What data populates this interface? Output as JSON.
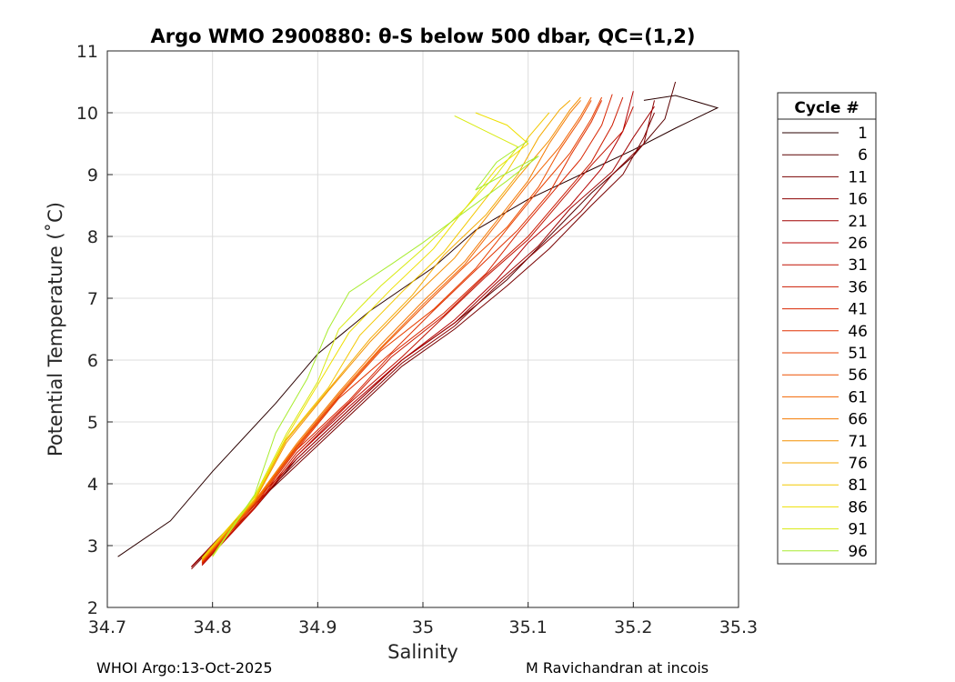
{
  "chart_data": {
    "type": "line",
    "title": "Argo WMO 2900880: θ-S below 500 dbar,  QC=(1,2)",
    "xlabel": "Salinity",
    "ylabel": "Potential Temperature (˚C)",
    "xlim": [
      34.7,
      35.3
    ],
    "ylim": [
      2,
      11
    ],
    "xticks": [
      "34.7",
      "34.8",
      "34.9",
      "35",
      "35.1",
      "35.2",
      "35.3"
    ],
    "yticks": [
      "2",
      "3",
      "4",
      "5",
      "6",
      "7",
      "8",
      "9",
      "10",
      "11"
    ],
    "grid": true,
    "legend_title": "Cycle #",
    "legend_position": "right",
    "series": [
      {
        "name": "1",
        "color": "#2a0000",
        "points": [
          [
            34.71,
            2.82
          ],
          [
            34.76,
            3.4
          ],
          [
            34.8,
            4.2
          ],
          [
            34.86,
            5.3
          ],
          [
            34.9,
            6.1
          ],
          [
            34.95,
            6.8
          ],
          [
            35.01,
            7.5
          ],
          [
            35.05,
            8.1
          ],
          [
            35.1,
            8.6
          ],
          [
            35.15,
            9.0
          ],
          [
            35.2,
            9.4
          ],
          [
            35.24,
            9.75
          ],
          [
            35.28,
            10.08
          ],
          [
            35.24,
            10.28
          ],
          [
            35.21,
            10.2
          ]
        ]
      },
      {
        "name": "6",
        "color": "#5a0000",
        "points": [
          [
            34.79,
            2.8
          ],
          [
            34.84,
            3.6
          ],
          [
            34.88,
            4.4
          ],
          [
            34.93,
            5.2
          ],
          [
            34.98,
            6.0
          ],
          [
            35.03,
            6.6
          ],
          [
            35.08,
            7.3
          ],
          [
            35.12,
            8.0
          ],
          [
            35.16,
            8.7
          ],
          [
            35.2,
            9.3
          ],
          [
            35.23,
            9.9
          ],
          [
            35.24,
            10.5
          ]
        ]
      },
      {
        "name": "11",
        "color": "#780000",
        "points": [
          [
            34.78,
            2.65
          ],
          [
            34.83,
            3.5
          ],
          [
            34.88,
            4.3
          ],
          [
            34.93,
            5.1
          ],
          [
            34.98,
            5.9
          ],
          [
            35.03,
            6.5
          ],
          [
            35.08,
            7.2
          ],
          [
            35.12,
            7.8
          ],
          [
            35.16,
            8.5
          ],
          [
            35.19,
            9.0
          ],
          [
            35.21,
            9.6
          ],
          [
            35.22,
            10.0
          ]
        ]
      },
      {
        "name": "16",
        "color": "#8c0000",
        "points": [
          [
            34.78,
            2.62
          ],
          [
            34.83,
            3.5
          ],
          [
            34.88,
            4.35
          ],
          [
            34.93,
            5.15
          ],
          [
            34.98,
            5.95
          ],
          [
            35.03,
            6.55
          ],
          [
            35.07,
            7.2
          ],
          [
            35.11,
            7.8
          ],
          [
            35.15,
            8.4
          ],
          [
            35.18,
            9.0
          ],
          [
            35.21,
            9.5
          ],
          [
            35.22,
            10.2
          ]
        ]
      },
      {
        "name": "21",
        "color": "#a00000",
        "points": [
          [
            34.78,
            2.66
          ],
          [
            34.83,
            3.55
          ],
          [
            34.88,
            4.4
          ],
          [
            34.93,
            5.2
          ],
          [
            34.98,
            6.0
          ],
          [
            35.03,
            6.6
          ],
          [
            35.07,
            7.25
          ],
          [
            35.11,
            7.85
          ],
          [
            35.14,
            8.45
          ],
          [
            35.18,
            9.05
          ],
          [
            35.2,
            9.6
          ],
          [
            35.22,
            10.1
          ]
        ]
      },
      {
        "name": "26",
        "color": "#b40000",
        "points": [
          [
            34.79,
            2.68
          ],
          [
            34.84,
            3.6
          ],
          [
            34.88,
            4.45
          ],
          [
            34.93,
            5.25
          ],
          [
            34.98,
            6.0
          ],
          [
            35.03,
            6.65
          ],
          [
            35.07,
            7.3
          ],
          [
            35.1,
            7.9
          ],
          [
            35.14,
            8.5
          ],
          [
            35.17,
            9.1
          ],
          [
            35.19,
            9.7
          ],
          [
            35.2,
            10.35
          ]
        ]
      },
      {
        "name": "31",
        "color": "#c01000",
        "points": [
          [
            34.79,
            2.7
          ],
          [
            34.84,
            3.6
          ],
          [
            34.88,
            4.45
          ],
          [
            34.93,
            5.3
          ],
          [
            34.98,
            6.05
          ],
          [
            35.02,
            6.7
          ],
          [
            35.06,
            7.35
          ],
          [
            35.1,
            7.95
          ],
          [
            35.13,
            8.55
          ],
          [
            35.16,
            9.15
          ],
          [
            35.19,
            9.7
          ],
          [
            35.2,
            10.1
          ]
        ]
      },
      {
        "name": "36",
        "color": "#cc1a00",
        "points": [
          [
            34.79,
            2.7
          ],
          [
            34.84,
            3.62
          ],
          [
            34.88,
            4.5
          ],
          [
            34.93,
            5.32
          ],
          [
            34.97,
            6.05
          ],
          [
            35.02,
            6.72
          ],
          [
            35.06,
            7.38
          ],
          [
            35.1,
            8.0
          ],
          [
            35.13,
            8.6
          ],
          [
            35.16,
            9.2
          ],
          [
            35.18,
            9.8
          ],
          [
            35.19,
            10.25
          ]
        ]
      },
      {
        "name": "41",
        "color": "#d82400",
        "points": [
          [
            34.79,
            2.72
          ],
          [
            34.84,
            3.65
          ],
          [
            34.88,
            4.55
          ],
          [
            34.93,
            5.35
          ],
          [
            34.97,
            6.1
          ],
          [
            35.02,
            6.76
          ],
          [
            35.06,
            7.4
          ],
          [
            35.09,
            8.05
          ],
          [
            35.12,
            8.65
          ],
          [
            35.15,
            9.25
          ],
          [
            35.17,
            9.8
          ],
          [
            35.18,
            10.3
          ]
        ]
      },
      {
        "name": "46",
        "color": "#e03000",
        "points": [
          [
            34.79,
            2.72
          ],
          [
            34.84,
            3.65
          ],
          [
            34.88,
            4.55
          ],
          [
            34.92,
            5.38
          ],
          [
            34.97,
            6.12
          ],
          [
            35.01,
            6.8
          ],
          [
            35.05,
            7.45
          ],
          [
            35.09,
            8.1
          ],
          [
            35.12,
            8.7
          ],
          [
            35.14,
            9.3
          ],
          [
            35.16,
            9.85
          ],
          [
            35.17,
            10.2
          ]
        ]
      },
      {
        "name": "51",
        "color": "#e84000",
        "points": [
          [
            34.79,
            2.74
          ],
          [
            34.84,
            3.68
          ],
          [
            34.88,
            4.58
          ],
          [
            34.92,
            5.4
          ],
          [
            34.96,
            6.15
          ],
          [
            35.01,
            6.82
          ],
          [
            35.05,
            7.48
          ],
          [
            35.08,
            8.12
          ],
          [
            35.11,
            8.75
          ],
          [
            35.14,
            9.35
          ],
          [
            35.16,
            9.9
          ],
          [
            35.17,
            10.25
          ]
        ]
      },
      {
        "name": "56",
        "color": "#ee5000",
        "points": [
          [
            34.79,
            2.74
          ],
          [
            34.84,
            3.68
          ],
          [
            34.88,
            4.6
          ],
          [
            34.92,
            5.42
          ],
          [
            34.96,
            6.18
          ],
          [
            35.0,
            6.86
          ],
          [
            35.04,
            7.52
          ],
          [
            35.08,
            8.15
          ],
          [
            35.11,
            8.8
          ],
          [
            35.13,
            9.4
          ],
          [
            35.15,
            9.9
          ],
          [
            35.16,
            10.2
          ]
        ]
      },
      {
        "name": "61",
        "color": "#f26400",
        "points": [
          [
            34.79,
            2.75
          ],
          [
            34.84,
            3.7
          ],
          [
            34.88,
            4.62
          ],
          [
            34.92,
            5.45
          ],
          [
            34.96,
            6.2
          ],
          [
            35.0,
            6.9
          ],
          [
            35.04,
            7.55
          ],
          [
            35.07,
            8.2
          ],
          [
            35.1,
            8.85
          ],
          [
            35.13,
            9.45
          ],
          [
            35.15,
            9.95
          ],
          [
            35.16,
            10.25
          ]
        ]
      },
      {
        "name": "66",
        "color": "#f47a00",
        "points": [
          [
            34.79,
            2.76
          ],
          [
            34.84,
            3.72
          ],
          [
            34.88,
            4.65
          ],
          [
            34.92,
            5.48
          ],
          [
            34.96,
            6.25
          ],
          [
            35.0,
            6.95
          ],
          [
            35.04,
            7.6
          ],
          [
            35.07,
            8.25
          ],
          [
            35.1,
            8.9
          ],
          [
            35.12,
            9.5
          ],
          [
            35.14,
            10.0
          ],
          [
            35.15,
            10.2
          ]
        ]
      },
      {
        "name": "71",
        "color": "#f49000",
        "points": [
          [
            34.79,
            2.76
          ],
          [
            34.84,
            3.72
          ],
          [
            34.87,
            4.66
          ],
          [
            34.91,
            5.5
          ],
          [
            34.95,
            6.3
          ],
          [
            34.99,
            7.0
          ],
          [
            35.03,
            7.65
          ],
          [
            35.06,
            8.3
          ],
          [
            35.09,
            8.95
          ],
          [
            35.12,
            9.55
          ],
          [
            35.14,
            10.05
          ],
          [
            35.15,
            10.25
          ]
        ]
      },
      {
        "name": "76",
        "color": "#f4aa00",
        "points": [
          [
            34.79,
            2.78
          ],
          [
            34.84,
            3.74
          ],
          [
            34.87,
            4.7
          ],
          [
            34.91,
            5.52
          ],
          [
            34.95,
            6.35
          ],
          [
            34.99,
            7.05
          ],
          [
            35.02,
            7.7
          ],
          [
            35.06,
            8.35
          ],
          [
            35.09,
            9.0
          ],
          [
            35.11,
            9.6
          ],
          [
            35.13,
            10.05
          ],
          [
            35.14,
            10.2
          ]
        ]
      },
      {
        "name": "81",
        "color": "#f2c800",
        "points": [
          [
            34.79,
            2.78
          ],
          [
            34.84,
            3.75
          ],
          [
            34.87,
            4.72
          ],
          [
            34.91,
            5.55
          ],
          [
            34.94,
            6.4
          ],
          [
            34.98,
            7.1
          ],
          [
            35.02,
            7.75
          ],
          [
            35.05,
            8.4
          ],
          [
            35.08,
            9.05
          ],
          [
            35.1,
            9.6
          ],
          [
            35.12,
            10.0
          ]
        ]
      },
      {
        "name": "86",
        "color": "#eedf00",
        "points": [
          [
            34.79,
            2.8
          ],
          [
            34.84,
            3.78
          ],
          [
            34.87,
            4.75
          ],
          [
            34.9,
            5.6
          ],
          [
            34.93,
            6.45
          ],
          [
            34.97,
            7.15
          ],
          [
            35.01,
            7.8
          ],
          [
            35.04,
            8.45
          ],
          [
            35.07,
            9.1
          ],
          [
            35.1,
            9.5
          ],
          [
            35.08,
            9.8
          ],
          [
            35.05,
            10.0
          ]
        ]
      },
      {
        "name": "91",
        "color": "#d8ea10",
        "points": [
          [
            34.8,
            2.82
          ],
          [
            34.84,
            3.8
          ],
          [
            34.87,
            4.8
          ],
          [
            34.9,
            5.65
          ],
          [
            34.92,
            6.5
          ],
          [
            34.96,
            7.2
          ],
          [
            35.0,
            7.8
          ],
          [
            35.04,
            8.45
          ],
          [
            35.07,
            9.0
          ],
          [
            35.09,
            9.45
          ],
          [
            35.06,
            9.7
          ],
          [
            35.03,
            9.95
          ]
        ]
      },
      {
        "name": "96",
        "color": "#a8ec30",
        "points": [
          [
            34.8,
            2.84
          ],
          [
            34.84,
            3.82
          ],
          [
            34.86,
            4.82
          ],
          [
            34.89,
            5.7
          ],
          [
            34.91,
            6.5
          ],
          [
            34.93,
            7.1
          ],
          [
            34.97,
            7.55
          ],
          [
            35.0,
            7.9
          ],
          [
            35.04,
            8.4
          ],
          [
            35.08,
            8.9
          ],
          [
            35.11,
            9.3
          ],
          [
            35.05,
            8.75
          ],
          [
            35.07,
            9.2
          ],
          [
            35.1,
            9.55
          ]
        ]
      }
    ]
  },
  "footer": {
    "left": "WHOI Argo:13-Oct-2025",
    "right": "M Ravichandran at incois"
  }
}
